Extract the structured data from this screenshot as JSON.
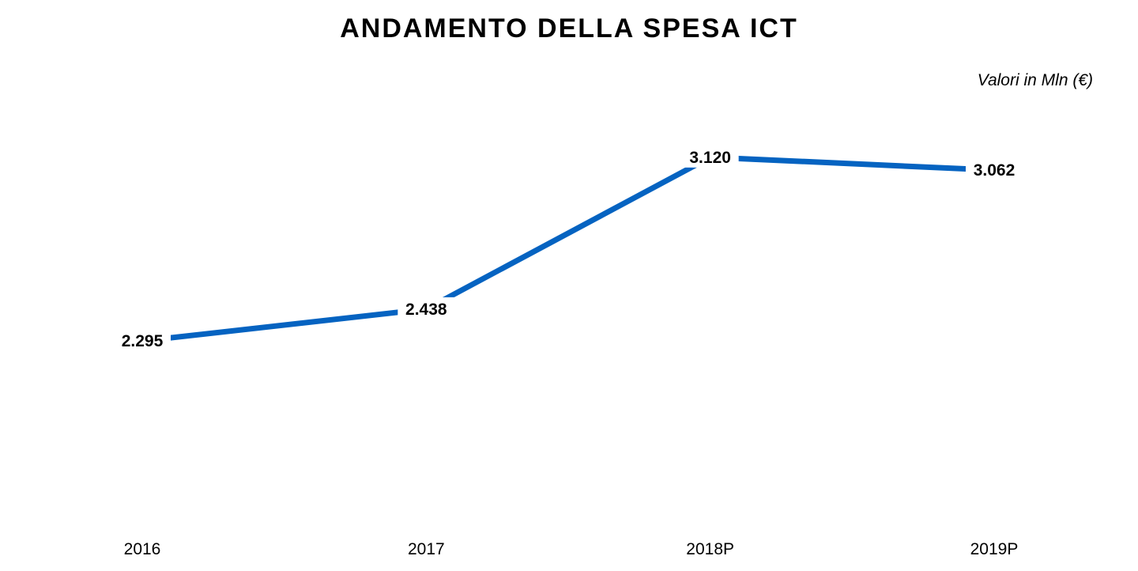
{
  "chart_data": {
    "type": "line",
    "title": "ANDAMENTO DELLA SPESA ICT",
    "unit_label": "Valori in Mln (€)",
    "categories": [
      "2016",
      "2017",
      "2018P",
      "2019P"
    ],
    "values": [
      2295,
      2438,
      3120,
      3062
    ],
    "value_labels": [
      "2.295",
      "2.438",
      "3.120",
      "3.062"
    ],
    "xlabel": "",
    "ylabel": "",
    "ylim": [
      1500,
      3400
    ],
    "grid": false,
    "legend": "none",
    "line_color": "#0563c1",
    "drop_line_color": "#0563c1"
  }
}
